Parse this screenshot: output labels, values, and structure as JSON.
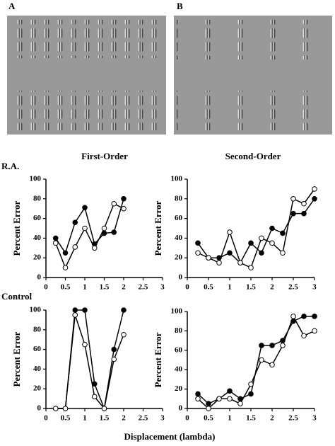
{
  "figure": {
    "panel_labels": [
      "A",
      "B"
    ],
    "column_titles": [
      "First-Order",
      "Second-Order"
    ],
    "row_labels": [
      "R.A.",
      "Control"
    ],
    "x_label": "Displacement (lambda)"
  },
  "chart_data": [
    {
      "type": "line",
      "y_label": "Percent Error",
      "x": [
        0.25,
        0.5,
        0.75,
        1,
        1.25,
        1.5,
        1.75,
        2
      ],
      "series": [
        {
          "color": "#000000",
          "marker_fill": "#000000",
          "values": [
            40,
            25,
            56,
            71,
            34,
            45,
            46,
            80
          ]
        },
        {
          "color": "#000000",
          "marker_fill": "#ffffff",
          "values": [
            35,
            10,
            31,
            50,
            30,
            50,
            75,
            70
          ]
        }
      ],
      "xlim": [
        0,
        3
      ],
      "ylim": [
        0,
        100
      ],
      "xticks": [
        0,
        0.5,
        1,
        1.5,
        2,
        2.5,
        3
      ],
      "yticks": [
        0,
        20,
        40,
        60,
        80,
        100
      ]
    },
    {
      "type": "line",
      "y_label": "Percent Error",
      "x": [
        0.25,
        0.5,
        0.75,
        1,
        1.25,
        1.5,
        1.75,
        2,
        2.25,
        2.5,
        2.75,
        3
      ],
      "series": [
        {
          "color": "#000000",
          "marker_fill": "#000000",
          "values": [
            35,
            20,
            20,
            25,
            15,
            35,
            25,
            50,
            45,
            65,
            65,
            80
          ]
        },
        {
          "color": "#000000",
          "marker_fill": "#ffffff",
          "values": [
            25,
            20,
            15,
            46,
            15,
            10,
            40,
            35,
            25,
            80,
            75,
            90
          ]
        }
      ],
      "xlim": [
        0,
        3
      ],
      "ylim": [
        0,
        100
      ],
      "xticks": [
        0,
        0.5,
        1,
        1.5,
        2,
        2.5,
        3
      ],
      "yticks": [
        0,
        20,
        40,
        60,
        80,
        100
      ]
    },
    {
      "type": "line",
      "y_label": "Percent Error",
      "x": [
        0.25,
        0.5,
        0.75,
        1,
        1.25,
        1.5,
        1.75,
        2
      ],
      "series": [
        {
          "color": "#000000",
          "marker_fill": "#000000",
          "values": [
            0,
            0,
            100,
            100,
            25,
            0,
            60,
            100
          ]
        },
        {
          "color": "#000000",
          "marker_fill": "#ffffff",
          "values": [
            0,
            0,
            95,
            65,
            12,
            0,
            50,
            75
          ]
        }
      ],
      "xlim": [
        0,
        3
      ],
      "ylim": [
        0,
        100
      ],
      "xticks": [
        0,
        0.5,
        1,
        1.5,
        2,
        2.5,
        3
      ],
      "yticks": [
        0,
        20,
        40,
        60,
        80,
        100
      ]
    },
    {
      "type": "line",
      "y_label": "Percent Error",
      "x": [
        0.25,
        0.5,
        0.75,
        1,
        1.25,
        1.5,
        1.75,
        2,
        2.25,
        2.5,
        2.75,
        3
      ],
      "series": [
        {
          "color": "#000000",
          "marker_fill": "#000000",
          "values": [
            15,
            5,
            10,
            18,
            10,
            15,
            65,
            65,
            70,
            90,
            95,
            95
          ]
        },
        {
          "color": "#000000",
          "marker_fill": "#ffffff",
          "values": [
            10,
            0,
            10,
            10,
            5,
            25,
            50,
            45,
            65,
            95,
            75,
            80
          ]
        }
      ],
      "xlim": [
        0,
        3
      ],
      "ylim": [
        0,
        100
      ],
      "xticks": [
        0,
        0.5,
        1,
        1.5,
        2,
        2.5,
        3
      ],
      "yticks": [
        0,
        20,
        40,
        60,
        80,
        100
      ]
    }
  ]
}
